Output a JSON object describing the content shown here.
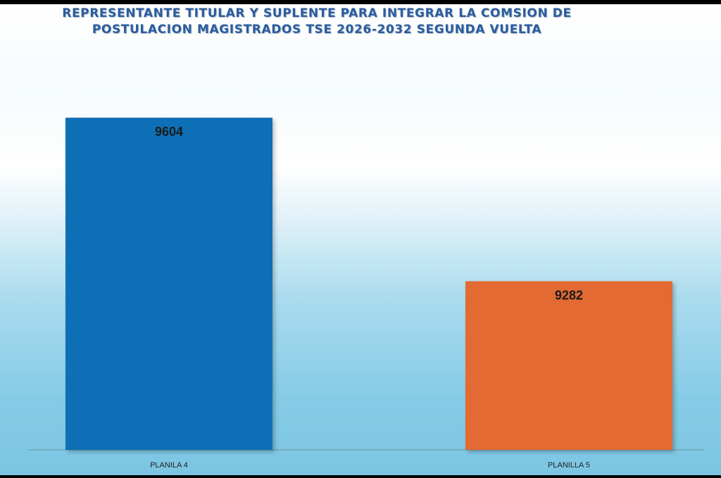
{
  "colors": {
    "background": "#7cc6e3",
    "title": "#2a5d9e",
    "axis": "#6a8fa0"
  },
  "chart_data": {
    "type": "bar",
    "title_lines": [
      "REPRESENTANTE TITULAR Y SUPLENTE PARA INTEGRAR LA COMSION DE",
      "POSTULACION MAGISTRADOS TSE 2026-2032 SEGUNDA VUELTA"
    ],
    "categories": [
      "PLANILA 4",
      "PLANILLA 5"
    ],
    "values": [
      9604,
      9282
    ],
    "data_labels": [
      "9604",
      "9282"
    ],
    "bar_colors": [
      "#0f6fb7",
      "#e36a32"
    ],
    "ylim": [
      8950,
      9650
    ],
    "grid": false,
    "legend": false
  }
}
